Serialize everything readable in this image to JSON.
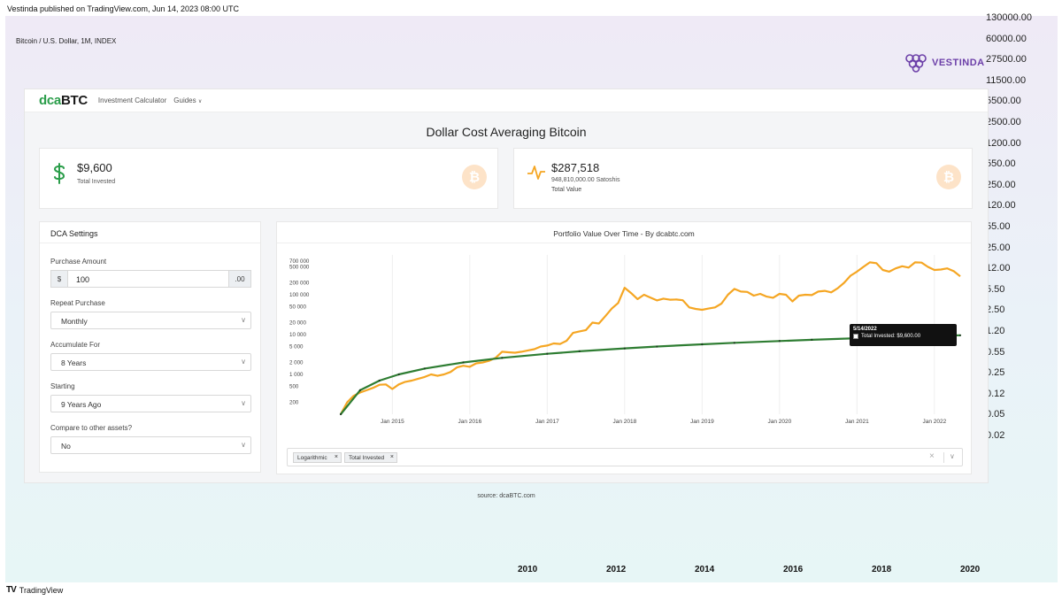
{
  "tradingview": {
    "header": "Vestinda published on TradingView.com, Jun 14, 2023 08:00 UTC",
    "symbol": "Bitcoin / U.S. Dollar, 1M, INDEX",
    "right_axis_labels": [
      "130000.00",
      "60000.00",
      "27500.00",
      "11500.00",
      "5500.00",
      "2500.00",
      "1200.00",
      "550.00",
      "250.00",
      "120.00",
      "55.00",
      "25.00",
      "12.00",
      "5.50",
      "2.50",
      "1.20",
      "0.55",
      "0.25",
      "0.12",
      "0.05",
      "0.02"
    ],
    "bottom_axis_labels": [
      "2010",
      "2012",
      "2014",
      "2016",
      "2018",
      "2020"
    ],
    "footer": "TradingView",
    "footer_mark": "TV",
    "brand": "VESTINDA",
    "colors": {
      "brand": "#6c3fa8"
    }
  },
  "app": {
    "logo_dca": "dca",
    "logo_btc": "BTC",
    "nav": {
      "calculator": "Investment Calculator",
      "guides": "Guides",
      "guides_chevron": "∨"
    },
    "title": "Dollar Cost Averaging Bitcoin",
    "invested": {
      "value": "$9,600",
      "label": "Total Invested",
      "icon": "dollar-icon"
    },
    "portfolio": {
      "value": "$287,518",
      "satoshis": "948,810,000.00 Satoshis",
      "label": "Total Value",
      "icon": "pulse-icon"
    },
    "coin_glyph": "₿",
    "settings": {
      "heading": "DCA Settings",
      "purchase_amount_label": "Purchase Amount",
      "currency_prefix": "$",
      "purchase_amount": "100",
      "cents_suffix": ".00",
      "repeat_label": "Repeat Purchase",
      "repeat_value": "Monthly",
      "accumulate_label": "Accumulate For",
      "accumulate_value": "8 Years",
      "starting_label": "Starting",
      "starting_value": "9 Years Ago",
      "compare_label": "Compare to other assets?",
      "compare_value": "No",
      "select_chevron": "∨"
    },
    "chart_panel": {
      "title": "Portfolio Value Over Time - By dcabtc.com",
      "chips": [
        {
          "label": "Logarithmic"
        },
        {
          "label": "Total Invested"
        }
      ],
      "chip_remove": "×",
      "clear": "×",
      "caret": "∨",
      "tooltip": {
        "date": "5/14/2022",
        "series_text": "Total Invested: $9,600.00"
      }
    },
    "source": "source: dcaBTC.com",
    "colors": {
      "accent_green": "#2a9d4a",
      "portfolio_line": "#f5a623",
      "invested_line": "#2e7d32"
    }
  },
  "chart_data": {
    "type": "line",
    "title": "Portfolio Value Over Time - By dcabtc.com",
    "y_scale": "log",
    "ylim": [
      100,
      1000000
    ],
    "y_ticks": [
      200,
      500,
      1000,
      2000,
      5000,
      10000,
      20000,
      50000,
      100000,
      200000,
      500000,
      700000
    ],
    "y_tick_labels": [
      "200",
      "500",
      "1 000",
      "2 000",
      "5 000",
      "10 000",
      "20 000",
      "50 000",
      "100 000",
      "200 000",
      "500 000",
      "700 000"
    ],
    "xlim": [
      "2014-05",
      "2022-05"
    ],
    "x_ticks": [
      "2015-01",
      "2016-01",
      "2017-01",
      "2018-01",
      "2019-01",
      "2020-01",
      "2021-01",
      "2022-01"
    ],
    "x_tick_labels": [
      "Jan 2015",
      "Jan 2016",
      "Jan 2017",
      "Jan 2018",
      "Jan 2019",
      "Jan 2020",
      "Jan 2021",
      "Jan 2022"
    ],
    "grid": true,
    "series": [
      {
        "name": "Portfolio Value",
        "points": [
          [
            "2014-05",
            100
          ],
          [
            "2014-06",
            200
          ],
          [
            "2014-07",
            290
          ],
          [
            "2014-08",
            350
          ],
          [
            "2014-09",
            400
          ],
          [
            "2014-10",
            460
          ],
          [
            "2014-11",
            550
          ],
          [
            "2014-12",
            560
          ],
          [
            "2015-01",
            430
          ],
          [
            "2015-02",
            560
          ],
          [
            "2015-03",
            650
          ],
          [
            "2015-04",
            700
          ],
          [
            "2015-05",
            780
          ],
          [
            "2015-06",
            860
          ],
          [
            "2015-07",
            1000
          ],
          [
            "2015-08",
            920
          ],
          [
            "2015-09",
            1000
          ],
          [
            "2015-10",
            1150
          ],
          [
            "2015-11",
            1500
          ],
          [
            "2015-12",
            1650
          ],
          [
            "2016-01",
            1550
          ],
          [
            "2016-02",
            1900
          ],
          [
            "2016-03",
            2000
          ],
          [
            "2016-04",
            2200
          ],
          [
            "2016-05",
            2600
          ],
          [
            "2016-06",
            3700
          ],
          [
            "2016-07",
            3600
          ],
          [
            "2016-08",
            3500
          ],
          [
            "2016-09",
            3700
          ],
          [
            "2016-10",
            4000
          ],
          [
            "2016-11",
            4300
          ],
          [
            "2016-12",
            5000
          ],
          [
            "2017-01",
            5300
          ],
          [
            "2017-02",
            6000
          ],
          [
            "2017-03",
            5800
          ],
          [
            "2017-04",
            7000
          ],
          [
            "2017-05",
            11000
          ],
          [
            "2017-06",
            12000
          ],
          [
            "2017-07",
            13000
          ],
          [
            "2017-08",
            20000
          ],
          [
            "2017-09",
            19000
          ],
          [
            "2017-10",
            29000
          ],
          [
            "2017-11",
            45000
          ],
          [
            "2017-12",
            62000
          ],
          [
            "2018-01",
            150000
          ],
          [
            "2018-02",
            110000
          ],
          [
            "2018-03",
            78000
          ],
          [
            "2018-04",
            100000
          ],
          [
            "2018-05",
            85000
          ],
          [
            "2018-06",
            72000
          ],
          [
            "2018-07",
            80000
          ],
          [
            "2018-08",
            75000
          ],
          [
            "2018-09",
            76000
          ],
          [
            "2018-10",
            73000
          ],
          [
            "2018-11",
            48000
          ],
          [
            "2018-12",
            44000
          ],
          [
            "2019-01",
            42000
          ],
          [
            "2019-02",
            45000
          ],
          [
            "2019-03",
            48000
          ],
          [
            "2019-04",
            60000
          ],
          [
            "2019-05",
            100000
          ],
          [
            "2019-06",
            140000
          ],
          [
            "2019-07",
            120000
          ],
          [
            "2019-08",
            118000
          ],
          [
            "2019-09",
            95000
          ],
          [
            "2019-10",
            105000
          ],
          [
            "2019-11",
            90000
          ],
          [
            "2019-12",
            84000
          ],
          [
            "2020-01",
            105000
          ],
          [
            "2020-02",
            100000
          ],
          [
            "2020-03",
            68000
          ],
          [
            "2020-04",
            95000
          ],
          [
            "2020-05",
            100000
          ],
          [
            "2020-06",
            98000
          ],
          [
            "2020-07",
            120000
          ],
          [
            "2020-08",
            125000
          ],
          [
            "2020-09",
            115000
          ],
          [
            "2020-10",
            145000
          ],
          [
            "2020-11",
            200000
          ],
          [
            "2020-12",
            300000
          ],
          [
            "2021-01",
            380000
          ],
          [
            "2021-02",
            500000
          ],
          [
            "2021-03",
            650000
          ],
          [
            "2021-04",
            620000
          ],
          [
            "2021-05",
            420000
          ],
          [
            "2021-06",
            380000
          ],
          [
            "2021-07",
            460000
          ],
          [
            "2021-08",
            520000
          ],
          [
            "2021-09",
            480000
          ],
          [
            "2021-10",
            650000
          ],
          [
            "2021-11",
            640000
          ],
          [
            "2021-12",
            500000
          ],
          [
            "2022-01",
            420000
          ],
          [
            "2022-02",
            430000
          ],
          [
            "2022-03",
            460000
          ],
          [
            "2022-04",
            390000
          ],
          [
            "2022-05",
            290000
          ]
        ]
      },
      {
        "name": "Total Invested",
        "points": [
          [
            "2014-05",
            100
          ],
          [
            "2014-08",
            400
          ],
          [
            "2014-11",
            700
          ],
          [
            "2015-02",
            1000
          ],
          [
            "2015-06",
            1400
          ],
          [
            "2015-12",
            2000
          ],
          [
            "2016-06",
            2600
          ],
          [
            "2017-01",
            3300
          ],
          [
            "2017-06",
            3800
          ],
          [
            "2018-01",
            4500
          ],
          [
            "2018-06",
            5000
          ],
          [
            "2019-01",
            5700
          ],
          [
            "2019-06",
            6200
          ],
          [
            "2020-01",
            6900
          ],
          [
            "2020-06",
            7400
          ],
          [
            "2021-01",
            8100
          ],
          [
            "2021-06",
            8600
          ],
          [
            "2022-01",
            9300
          ],
          [
            "2022-05",
            9600
          ]
        ]
      }
    ]
  }
}
